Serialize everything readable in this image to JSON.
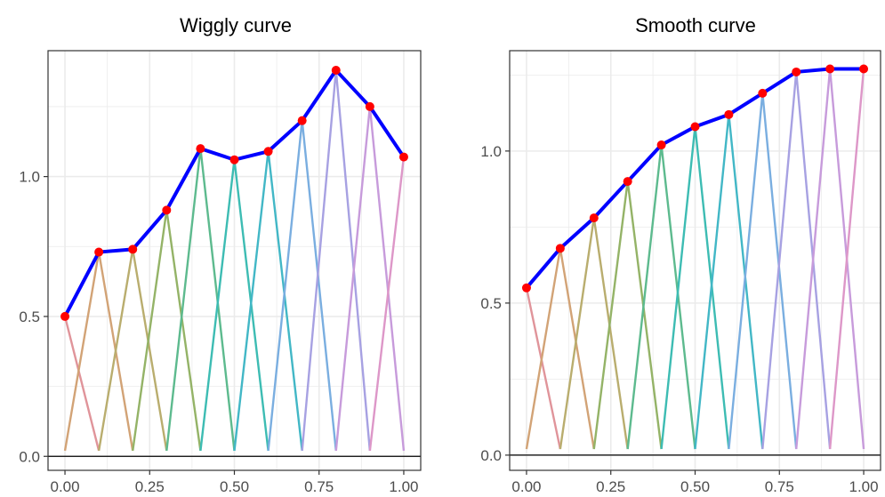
{
  "chart_data": [
    {
      "type": "line",
      "title": "Wiggly curve",
      "xlabel": "",
      "ylabel": "",
      "xlim": [
        -0.05,
        1.05
      ],
      "ylim": [
        -0.05,
        1.45
      ],
      "x_ticks": [
        0.0,
        0.25,
        0.5,
        0.75,
        1.0
      ],
      "x_tick_labels": [
        "0.00",
        "0.25",
        "0.50",
        "0.75",
        "1.00"
      ],
      "y_ticks": [
        0.0,
        0.5,
        1.0
      ],
      "y_tick_labels": [
        "0.0",
        "0.5",
        "1.0"
      ],
      "grid": true,
      "zero_line": true,
      "x": [
        0.0,
        0.1,
        0.2,
        0.3,
        0.4,
        0.5,
        0.6,
        0.7,
        0.8,
        0.9,
        1.0
      ],
      "series": [
        {
          "values": [
            0.5,
            0.73,
            0.74,
            0.88,
            1.1,
            1.06,
            1.09,
            1.2,
            1.38,
            1.25,
            1.07
          ]
        }
      ],
      "line_color": "#0000ff",
      "point_color": "#ff0000"
    },
    {
      "type": "line",
      "title": "Smooth curve",
      "xlabel": "",
      "ylabel": "",
      "xlim": [
        -0.05,
        1.05
      ],
      "ylim": [
        -0.05,
        1.33
      ],
      "x_ticks": [
        0.0,
        0.25,
        0.5,
        0.75,
        1.0
      ],
      "x_tick_labels": [
        "0.00",
        "0.25",
        "0.50",
        "0.75",
        "1.00"
      ],
      "y_ticks": [
        0.0,
        0.5,
        1.0
      ],
      "y_tick_labels": [
        "0.0",
        "0.5",
        "1.0"
      ],
      "grid": true,
      "zero_line": true,
      "x": [
        0.0,
        0.1,
        0.2,
        0.3,
        0.4,
        0.5,
        0.6,
        0.7,
        0.8,
        0.9,
        1.0
      ],
      "series": [
        {
          "values": [
            0.55,
            0.68,
            0.78,
            0.9,
            1.02,
            1.08,
            1.12,
            1.19,
            1.26,
            1.27,
            1.27
          ]
        }
      ],
      "line_color": "#0000ff",
      "point_color": "#ff0000"
    }
  ],
  "basis_colors": [
    "#e0949a",
    "#d2a376",
    "#b9ad6e",
    "#94b367",
    "#5dba8e",
    "#3dbcb3",
    "#42b7c6",
    "#7aaee0",
    "#a7a1e2",
    "#c79bdb",
    "#dd97c8"
  ]
}
